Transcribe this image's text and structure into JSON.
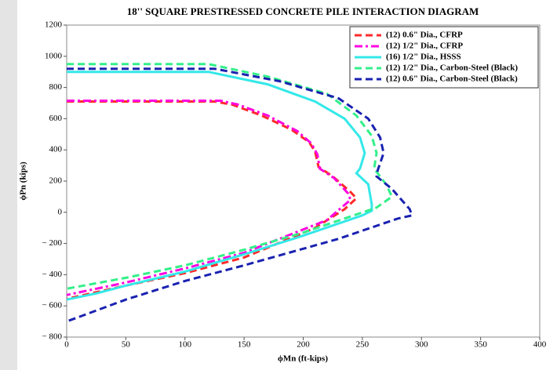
{
  "chart_data": {
    "type": "line",
    "title": "18'' SQUARE PRESTRESSED CONCRETE PILE INTERACTION DIAGRAM",
    "xlabel": "ϕMn (ft-kips)",
    "ylabel": "ϕPn (kips)",
    "xlim": [
      0,
      400
    ],
    "xticks": [
      0,
      50,
      100,
      150,
      200,
      250,
      300,
      350,
      400
    ],
    "ylim": [
      -800,
      1200
    ],
    "yticks": [
      {
        "value": -800,
        "label": "− 800"
      },
      {
        "value": -600,
        "label": "− 600"
      },
      {
        "value": -400,
        "label": "− 400"
      },
      {
        "value": -200,
        "label": "− 200"
      },
      0,
      200,
      400,
      600,
      800,
      1000,
      1200
    ],
    "legend": "upper right",
    "series": [
      {
        "name": "(12) 0.6\" Dia., CFRP",
        "color": "#ff2a2a",
        "dash": "dashed",
        "x": [
          0,
          125,
          140,
          165,
          190,
          205,
          210,
          213,
          225,
          240,
          245,
          235,
          210,
          150,
          100,
          50,
          0
        ],
        "values": [
          710,
          710,
          690,
          620,
          530,
          450,
          390,
          290,
          230,
          130,
          90,
          20,
          -100,
          -290,
          -390,
          -470,
          -555
        ]
      },
      {
        "name": "(12) 1/2\" Dia., CFRP",
        "color": "#ff00e0",
        "dash": "dashdot",
        "x": [
          0,
          130,
          145,
          170,
          195,
          207,
          212,
          214,
          226,
          238,
          240,
          220,
          150,
          100,
          50,
          0
        ],
        "values": [
          715,
          715,
          690,
          620,
          520,
          440,
          370,
          280,
          220,
          120,
          80,
          -50,
          -260,
          -360,
          -450,
          -530
        ]
      },
      {
        "name": "(16) 1/2\" Dia., HSSS",
        "color": "#33e8e8",
        "dash": "solid",
        "x": [
          0,
          120,
          170,
          210,
          235,
          248,
          252,
          248,
          245,
          255,
          258,
          258,
          250,
          200,
          150,
          100,
          50,
          25,
          0
        ],
        "values": [
          900,
          900,
          820,
          710,
          600,
          480,
          380,
          280,
          250,
          180,
          50,
          10,
          -20,
          -150,
          -270,
          -380,
          -470,
          -520,
          -560
        ]
      },
      {
        "name": "(12) 1/2\" Dia., Carbon-Steel (Black)",
        "color": "#33f08a",
        "dash": "dashed",
        "x": [
          0,
          120,
          170,
          220,
          245,
          258,
          262,
          260,
          270,
          275,
          262,
          200,
          150,
          100,
          50,
          0
        ],
        "values": [
          950,
          950,
          870,
          760,
          620,
          490,
          380,
          280,
          180,
          100,
          30,
          -130,
          -240,
          -340,
          -420,
          -490
        ]
      },
      {
        "name": "(12) 0.6\" Dia., Carbon-Steel (Black)",
        "color": "#1a22b0",
        "dash": "dashed",
        "x": [
          0,
          125,
          180,
          230,
          255,
          265,
          268,
          263,
          262,
          275,
          290,
          292,
          280,
          230,
          150,
          100,
          50,
          0
        ],
        "values": [
          920,
          920,
          840,
          730,
          600,
          480,
          380,
          270,
          230,
          150,
          20,
          -20,
          -40,
          -170,
          -340,
          -440,
          -560,
          -700
        ]
      }
    ]
  }
}
